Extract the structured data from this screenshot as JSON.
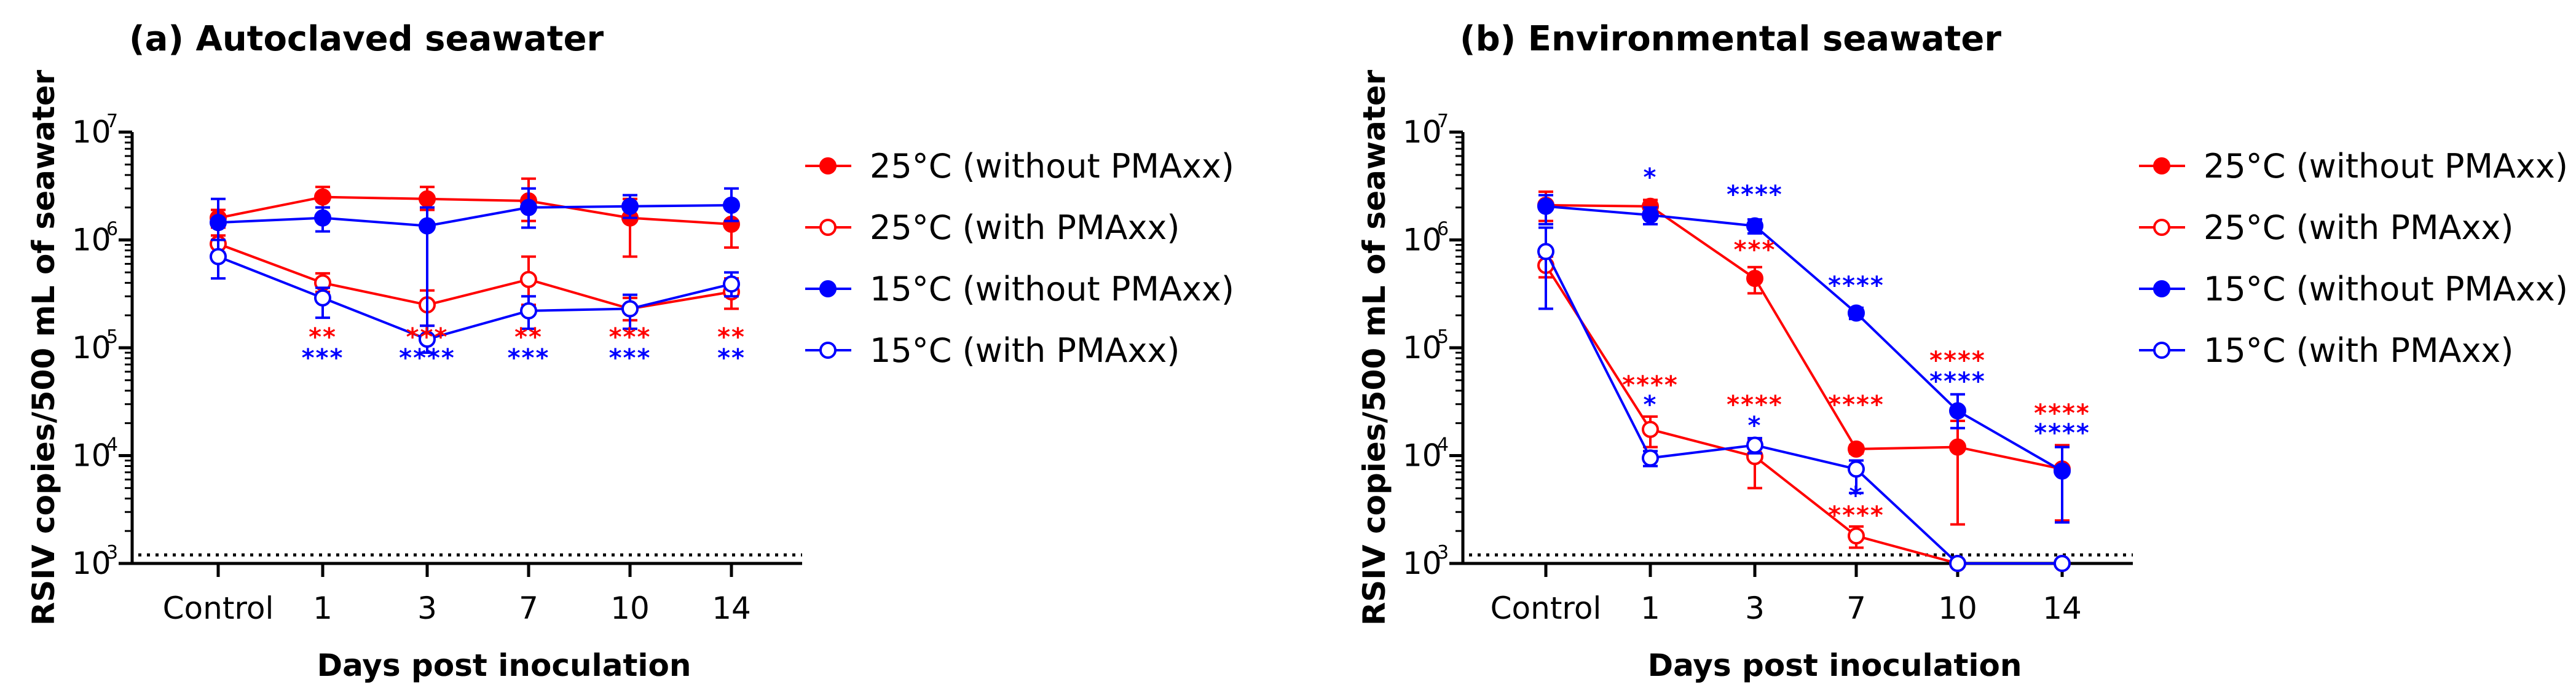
{
  "colors": {
    "red": "#ff0000",
    "blue": "#0000ff",
    "axis": "#000000"
  },
  "chart_data": [
    {
      "type": "line",
      "title": "(a) Autoclaved seawater",
      "xlabel": "Days post inoculation",
      "ylabel": "RSIV copies/500 mL of seawater",
      "yscale": "log10",
      "ylim_exponent": [
        3,
        7
      ],
      "ytick_labels": [
        {
          "base": "10",
          "exp": "3"
        },
        {
          "base": "10",
          "exp": "4"
        },
        {
          "base": "10",
          "exp": "5"
        },
        {
          "base": "10",
          "exp": "6"
        },
        {
          "base": "10",
          "exp": "7"
        }
      ],
      "categories": [
        "Control",
        "1",
        "3",
        "7",
        "10",
        "14"
      ],
      "detection_limit": 1200,
      "series": [
        {
          "name": "25°C (without PMAxx)",
          "color": "red",
          "filled": true,
          "values": [
            1600000,
            2500000,
            2400000,
            2300000,
            1600000,
            1400000
          ],
          "err_low": [
            1300000,
            2000000,
            1900000,
            1500000,
            700000,
            850000
          ],
          "err_high": [
            1900000,
            3100000,
            3100000,
            3700000,
            2400000,
            2000000
          ]
        },
        {
          "name": "25°C (with PMAxx)",
          "color": "red",
          "filled": false,
          "values": [
            920000,
            400000,
            250000,
            430000,
            230000,
            330000
          ],
          "err_low": [
            760000,
            330000,
            160000,
            250000,
            180000,
            230000
          ],
          "err_high": [
            1100000,
            490000,
            340000,
            700000,
            290000,
            440000
          ]
        },
        {
          "name": "15°C (without PMAxx)",
          "color": "blue",
          "filled": true,
          "values": [
            1450000,
            1600000,
            1350000,
            2000000,
            2050000,
            2100000
          ],
          "err_low": [
            1000000,
            1200000,
            120000,
            1300000,
            1600000,
            1500000
          ],
          "err_high": [
            2400000,
            2000000,
            2000000,
            3000000,
            2600000,
            3000000
          ]
        },
        {
          "name": "15°C (with PMAxx)",
          "color": "blue",
          "filled": false,
          "values": [
            700000,
            290000,
            120000,
            220000,
            230000,
            390000
          ],
          "err_low": [
            440000,
            190000,
            90000,
            150000,
            150000,
            300000
          ],
          "err_high": [
            1000000,
            360000,
            160000,
            300000,
            310000,
            500000
          ]
        }
      ],
      "annotations": [
        {
          "category": "1",
          "red": "**",
          "blue": "***"
        },
        {
          "category": "3",
          "red": "***",
          "blue": "****"
        },
        {
          "category": "7",
          "red": "**",
          "blue": "***"
        },
        {
          "category": "10",
          "red": "***",
          "blue": "***"
        },
        {
          "category": "14",
          "red": "**",
          "blue": "**"
        }
      ]
    },
    {
      "type": "line",
      "title": "(b) Environmental seawater",
      "xlabel": "Days post inoculation",
      "ylabel": "RSIV copies/500 mL of seawater",
      "yscale": "log10",
      "ylim_exponent": [
        3,
        7
      ],
      "ytick_labels": [
        {
          "base": "10",
          "exp": "3"
        },
        {
          "base": "10",
          "exp": "4"
        },
        {
          "base": "10",
          "exp": "5"
        },
        {
          "base": "10",
          "exp": "6"
        },
        {
          "base": "10",
          "exp": "7"
        }
      ],
      "categories": [
        "Control",
        "1",
        "3",
        "7",
        "10",
        "14"
      ],
      "detection_limit": 1200,
      "series": [
        {
          "name": "25°C (without PMAxx)",
          "color": "red",
          "filled": true,
          "values": [
            2100000,
            2050000,
            440000,
            11500,
            12000,
            7500
          ],
          "err_low": [
            1500000,
            1750000,
            320000,
            10500,
            2300,
            2500
          ],
          "err_high": [
            2800000,
            2350000,
            560000,
            12500,
            21000,
            12500
          ]
        },
        {
          "name": "25°C (with PMAxx)",
          "color": "red",
          "filled": false,
          "values": [
            580000,
            17500,
            9800,
            1800,
            1000,
            1000
          ],
          "err_low": [
            450000,
            12000,
            5000,
            1400,
            1000,
            1000
          ],
          "err_high": [
            700000,
            23000,
            14000,
            2200,
            1000,
            1000
          ]
        },
        {
          "name": "15°C (without PMAxx)",
          "color": "blue",
          "filled": true,
          "values": [
            2050000,
            1700000,
            1350000,
            210000,
            26000,
            7200
          ],
          "err_low": [
            1400000,
            1400000,
            1150000,
            185000,
            18000,
            2400
          ],
          "err_high": [
            2600000,
            2000000,
            1550000,
            235000,
            37000,
            12000
          ]
        },
        {
          "name": "15°C (with PMAxx)",
          "color": "blue",
          "filled": false,
          "values": [
            780000,
            9500,
            12500,
            7500,
            1000,
            1000
          ],
          "err_low": [
            230000,
            8000,
            10500,
            4500,
            1000,
            1000
          ],
          "err_high": [
            1300000,
            11000,
            14500,
            9000,
            1000,
            1000
          ]
        }
      ],
      "annotations": [
        {
          "category": "1",
          "red": "****",
          "blue": "*",
          "position": "low"
        },
        {
          "category": "1",
          "blue": "*",
          "position": "high"
        },
        {
          "category": "3",
          "red": "****",
          "blue": "*",
          "position": "low"
        },
        {
          "category": "3",
          "blue": "****",
          "red": "***",
          "position": "high"
        },
        {
          "category": "7",
          "red": "****",
          "position": "mid"
        },
        {
          "category": "7",
          "blue": "*",
          "red": "****",
          "position": "low"
        },
        {
          "category": "7",
          "blue": "****",
          "position": "high"
        },
        {
          "category": "10",
          "red": "****",
          "blue": "****",
          "position": "mid"
        },
        {
          "category": "14",
          "red": "****",
          "blue": "****",
          "position": "mid"
        }
      ]
    }
  ]
}
